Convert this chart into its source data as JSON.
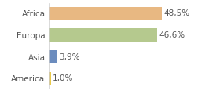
{
  "categories": [
    "America",
    "Asia",
    "Europa",
    "Africa"
  ],
  "values": [
    1.0,
    3.9,
    46.6,
    48.5
  ],
  "bar_colors": [
    "#e8c84a",
    "#6b8cbe",
    "#b5c98e",
    "#e8b882"
  ],
  "labels": [
    "1,0%",
    "3,9%",
    "46,6%",
    "48,5%"
  ],
  "background_color": "#ffffff",
  "xlim": [
    0,
    62
  ],
  "bar_height": 0.62,
  "label_fontsize": 7.5,
  "tick_fontsize": 7.5,
  "label_color": "#555555",
  "tick_color": "#555555"
}
